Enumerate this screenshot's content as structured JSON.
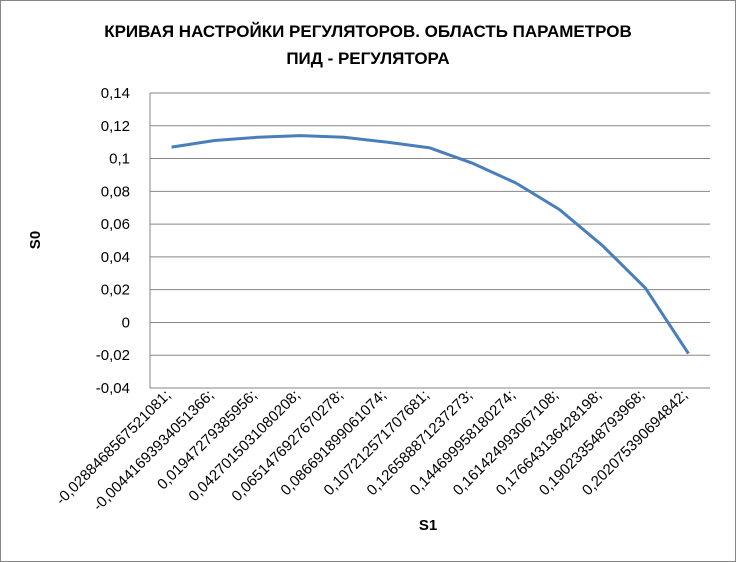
{
  "chart_data": {
    "type": "line",
    "title": "КРИВАЯ НАСТРОЙКИ РЕГУЛЯТОРОВ. ОБЛАСТЬ ПАРАМЕТРОВ ПИД - РЕГУЛЯТОРА",
    "x_label": "S1",
    "y_label": "S0",
    "categories": [
      "-0,0288468567521081;",
      "-0,00441693934051366;",
      "0,01947279385956;",
      "0,0427015031080208;",
      "0,0651476927670278;",
      "0,086691899061074;",
      "0,107212571707681;",
      "0,126588871237273;",
      "0,144699958180274;",
      "0,161424993067108;",
      "0,176643136428198;",
      "0,190233548793968;",
      "0,202075390694842;"
    ],
    "series": [
      {
        "name": "S0",
        "color": "#4a7ebb",
        "values": [
          0.107,
          0.111,
          0.113,
          0.114,
          0.113,
          0.11,
          0.1065,
          0.097,
          0.085,
          0.069,
          0.047,
          0.021,
          -0.019
        ]
      }
    ],
    "ylim": [
      -0.04,
      0.14
    ],
    "yticks": [
      {
        "value": -0.04,
        "label": "-0,04"
      },
      {
        "value": -0.02,
        "label": "-0,02"
      },
      0,
      {
        "value": 0.02,
        "label": "0,02"
      },
      {
        "value": 0.04,
        "label": "0,04"
      },
      {
        "value": 0.06,
        "label": "0,06"
      },
      {
        "value": 0.08,
        "label": "0,08"
      },
      {
        "value": 0.1,
        "label": "0,1"
      },
      {
        "value": 0.12,
        "label": "0,12"
      },
      {
        "value": 0.14,
        "label": "0,14"
      }
    ],
    "grid": true
  }
}
